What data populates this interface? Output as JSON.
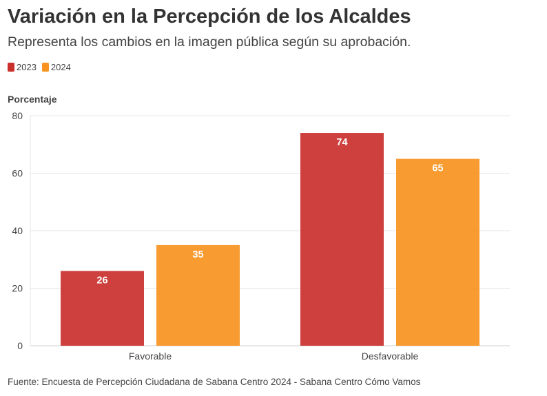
{
  "title": "Variación en la Percepción de los Alcaldes",
  "subtitle": "Representa los cambios en la imagen pública según su aprobación.",
  "source": "Fuente: Encuesta de Percepción Ciudadana de Sabana Centro 2024 - Sabana Centro Cómo Vamos",
  "colors": {
    "2023": "#c9302c",
    "2024": "#f7931e"
  },
  "chart_data": {
    "type": "bar",
    "title": "Variación en la Percepción de los Alcaldes",
    "subtitle": "Representa los cambios en la imagen pública según su aprobación.",
    "xlabel": "",
    "ylabel": "Porcentaje",
    "categories": [
      "Favorable",
      "Desfavorable"
    ],
    "series": [
      {
        "name": "2023",
        "values": [
          26,
          74
        ]
      },
      {
        "name": "2024",
        "values": [
          35,
          65
        ]
      }
    ],
    "ylim": [
      0,
      80
    ],
    "yticks": [
      0,
      20,
      40,
      60,
      80
    ],
    "grid": true,
    "legend": "top-left",
    "data_labels": true
  }
}
